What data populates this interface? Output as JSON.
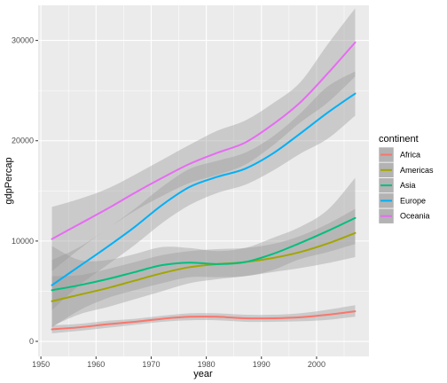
{
  "chart_data": {
    "type": "line",
    "xlabel": "year",
    "ylabel": "gdpPercap",
    "xlim": [
      1949.5,
      2009.5
    ],
    "ylim": [
      -1500,
      33500
    ],
    "xticks": [
      1950,
      1960,
      1970,
      1980,
      1990,
      2000
    ],
    "yticks": [
      0,
      10000,
      20000,
      30000
    ],
    "ytick_labels": [
      "0",
      "10000",
      "20000",
      "30000"
    ],
    "grid": true,
    "legend": {
      "title": "continent",
      "position": "right"
    },
    "x": [
      1952,
      1957,
      1962,
      1967,
      1972,
      1977,
      1982,
      1987,
      1992,
      1997,
      2002,
      2007
    ],
    "series": [
      {
        "name": "Africa",
        "color": "#F8766D",
        "values": [
          1200,
          1400,
          1700,
          1950,
          2250,
          2450,
          2450,
          2300,
          2300,
          2400,
          2650,
          3000
        ],
        "lower": [
          800,
          1050,
          1350,
          1650,
          1950,
          2100,
          2100,
          1950,
          1950,
          2000,
          2150,
          2450
        ],
        "upper": [
          1600,
          1750,
          2050,
          2250,
          2550,
          2800,
          2800,
          2650,
          2650,
          2800,
          3150,
          3600
        ]
      },
      {
        "name": "Americas",
        "color": "#A3A500",
        "values": [
          4000,
          4650,
          5300,
          6050,
          6800,
          7400,
          7700,
          7900,
          8300,
          8900,
          9750,
          10800
        ],
        "lower": [
          1500,
          2700,
          3400,
          4200,
          5000,
          5800,
          6200,
          6500,
          6900,
          7300,
          7800,
          8400
        ],
        "upper": [
          6500,
          6600,
          7200,
          7900,
          8600,
          9000,
          9200,
          9300,
          9700,
          10500,
          11700,
          13200
        ]
      },
      {
        "name": "Asia",
        "color": "#00BF7D",
        "values": [
          5100,
          5600,
          6200,
          6900,
          7600,
          7850,
          7700,
          7900,
          8700,
          9800,
          11000,
          12300
        ],
        "lower": [
          1400,
          3100,
          4300,
          5100,
          5800,
          6400,
          6400,
          6500,
          7100,
          8200,
          8900,
          9700
        ],
        "upper": [
          9500,
          8100,
          8100,
          8700,
          9400,
          9300,
          9000,
          9300,
          10300,
          11400,
          13100,
          16300
        ]
      },
      {
        "name": "Europe",
        "color": "#00B0F6",
        "values": [
          5600,
          7500,
          9400,
          11400,
          13600,
          15400,
          16400,
          17200,
          18700,
          20700,
          22800,
          24700
        ],
        "lower": [
          3100,
          5600,
          7600,
          9600,
          11800,
          13600,
          14800,
          15600,
          17000,
          18700,
          20200,
          22500
        ],
        "upper": [
          8100,
          9400,
          11200,
          13200,
          15400,
          17200,
          18000,
          18800,
          20400,
          22700,
          25400,
          26900
        ]
      },
      {
        "name": "Oceania",
        "color": "#E76BF3",
        "values": [
          10200,
          11700,
          13200,
          14800,
          16300,
          17700,
          18800,
          19800,
          21600,
          23800,
          26700,
          29800
        ],
        "lower": [
          7000,
          9200,
          11200,
          13000,
          14500,
          15800,
          16600,
          17600,
          19500,
          21800,
          23800,
          26400
        ],
        "upper": [
          13400,
          14200,
          15200,
          16600,
          18100,
          19600,
          21000,
          22000,
          23700,
          25800,
          29600,
          33200
        ]
      }
    ]
  }
}
